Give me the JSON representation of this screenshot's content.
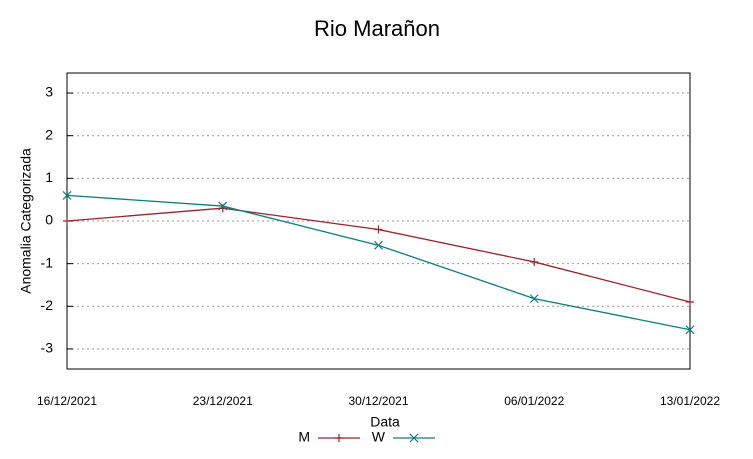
{
  "chart_data": {
    "type": "line",
    "title": "Rio Marañon",
    "x_label": "Data",
    "y_label": "Anomalia Categorizada",
    "categories": [
      "16/12/2021",
      "23/12/2021",
      "30/12/2021",
      "06/01/2022",
      "13/01/2022"
    ],
    "series": [
      {
        "name": "M",
        "color": "#a0202a",
        "marker": "plus",
        "values": [
          0,
          0.3,
          -0.2,
          -0.96,
          -1.9
        ]
      },
      {
        "name": "W",
        "color": "#0a7f80",
        "marker": "cross",
        "values": [
          0.6,
          0.35,
          -0.57,
          -1.82,
          -2.55
        ]
      }
    ],
    "ylim": [
      -3.47,
      3.47
    ],
    "yticks": [
      -3,
      -2,
      -1,
      0,
      1,
      2,
      3
    ],
    "grid": true,
    "legend": "bottom"
  }
}
